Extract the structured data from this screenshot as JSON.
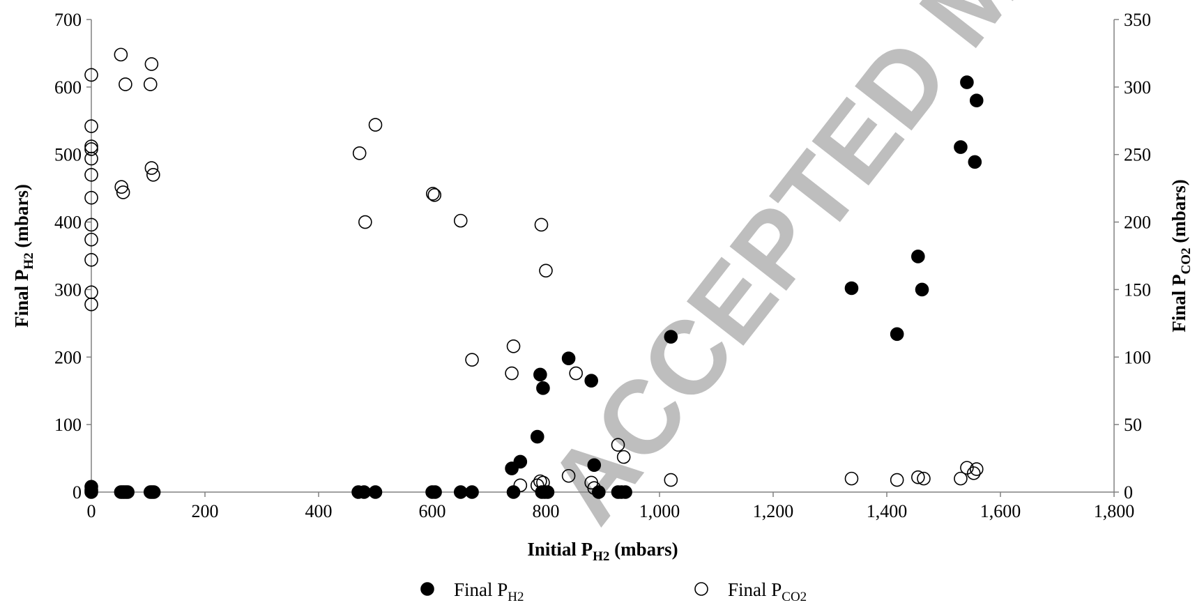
{
  "chart_data": {
    "type": "scatter",
    "xlabel": {
      "text": "Initial P",
      "sub": "H2",
      "unit": " (mbars)"
    },
    "ylabel_left": {
      "text": "Final P",
      "sub": "H2",
      "unit": " (mbars)"
    },
    "ylabel_right": {
      "text": "Final P",
      "sub": "CO2",
      "unit": " (mbars)"
    },
    "xlim": [
      0,
      1800
    ],
    "ylim_left": [
      0,
      700
    ],
    "ylim_right": [
      0,
      350
    ],
    "x_ticks": [
      "0",
      "200",
      "400",
      "600",
      "800",
      "1,000",
      "1,200",
      "1,400",
      "1,600",
      "1,800"
    ],
    "y_left_ticks": [
      "0",
      "100",
      "200",
      "300",
      "400",
      "500",
      "600",
      "700"
    ],
    "y_right_ticks": [
      "0",
      "50",
      "100",
      "150",
      "200",
      "250",
      "300",
      "350"
    ],
    "grid": false,
    "legend_position": "bottom-center",
    "watermark": "ACCEPTED MANUSCRIPT",
    "series": [
      {
        "name": {
          "text": "Final P",
          "sub": "H2"
        },
        "axis": "left",
        "marker": "filled-circle",
        "points": [
          [
            0,
            8
          ],
          [
            0,
            3
          ],
          [
            0,
            0
          ],
          [
            52,
            0
          ],
          [
            55,
            0
          ],
          [
            58,
            0
          ],
          [
            61,
            0
          ],
          [
            64,
            0
          ],
          [
            104,
            0
          ],
          [
            107,
            0
          ],
          [
            110,
            0
          ],
          [
            470,
            0
          ],
          [
            480,
            0
          ],
          [
            500,
            0
          ],
          [
            600,
            0
          ],
          [
            605,
            0
          ],
          [
            650,
            0
          ],
          [
            670,
            0
          ],
          [
            740,
            35
          ],
          [
            743,
            0
          ],
          [
            755,
            45
          ],
          [
            785,
            82
          ],
          [
            790,
            174
          ],
          [
            793,
            0
          ],
          [
            795,
            154
          ],
          [
            798,
            0
          ],
          [
            803,
            0
          ],
          [
            840,
            198
          ],
          [
            880,
            165
          ],
          [
            885,
            40
          ],
          [
            893,
            0
          ],
          [
            927,
            0
          ],
          [
            933,
            0
          ],
          [
            940,
            0
          ],
          [
            1020,
            230
          ],
          [
            1338,
            302
          ],
          [
            1418,
            234
          ],
          [
            1455,
            349
          ],
          [
            1462,
            300
          ],
          [
            1530,
            511
          ],
          [
            1541,
            607
          ],
          [
            1555,
            489
          ],
          [
            1558,
            580
          ]
        ]
      },
      {
        "name": {
          "text": "Final P",
          "sub": "CO2"
        },
        "axis": "right",
        "marker": "open-circle",
        "points": [
          [
            0,
            309
          ],
          [
            0,
            271
          ],
          [
            0,
            256
          ],
          [
            0,
            254
          ],
          [
            0,
            247
          ],
          [
            0,
            235
          ],
          [
            0,
            218
          ],
          [
            0,
            198
          ],
          [
            0,
            187
          ],
          [
            0,
            172
          ],
          [
            0,
            148
          ],
          [
            0,
            139
          ],
          [
            52,
            324
          ],
          [
            60,
            302
          ],
          [
            106,
            317
          ],
          [
            104,
            302
          ],
          [
            106,
            240
          ],
          [
            109,
            235
          ],
          [
            53,
            226
          ],
          [
            56,
            222
          ],
          [
            472,
            251
          ],
          [
            500,
            272
          ],
          [
            482,
            200
          ],
          [
            601,
            221
          ],
          [
            604,
            220
          ],
          [
            650,
            201
          ],
          [
            670,
            98
          ],
          [
            740,
            88
          ],
          [
            743,
            108
          ],
          [
            755,
            5
          ],
          [
            785,
            5
          ],
          [
            790,
            8
          ],
          [
            792,
            198
          ],
          [
            795,
            7
          ],
          [
            800,
            164
          ],
          [
            840,
            12
          ],
          [
            853,
            88
          ],
          [
            880,
            7
          ],
          [
            885,
            3
          ],
          [
            927,
            35
          ],
          [
            937,
            26
          ],
          [
            1020,
            9
          ],
          [
            1338,
            10
          ],
          [
            1418,
            9
          ],
          [
            1455,
            11
          ],
          [
            1465,
            10
          ],
          [
            1530,
            10
          ],
          [
            1541,
            18
          ],
          [
            1553,
            14
          ],
          [
            1558,
            17
          ]
        ]
      }
    ]
  }
}
